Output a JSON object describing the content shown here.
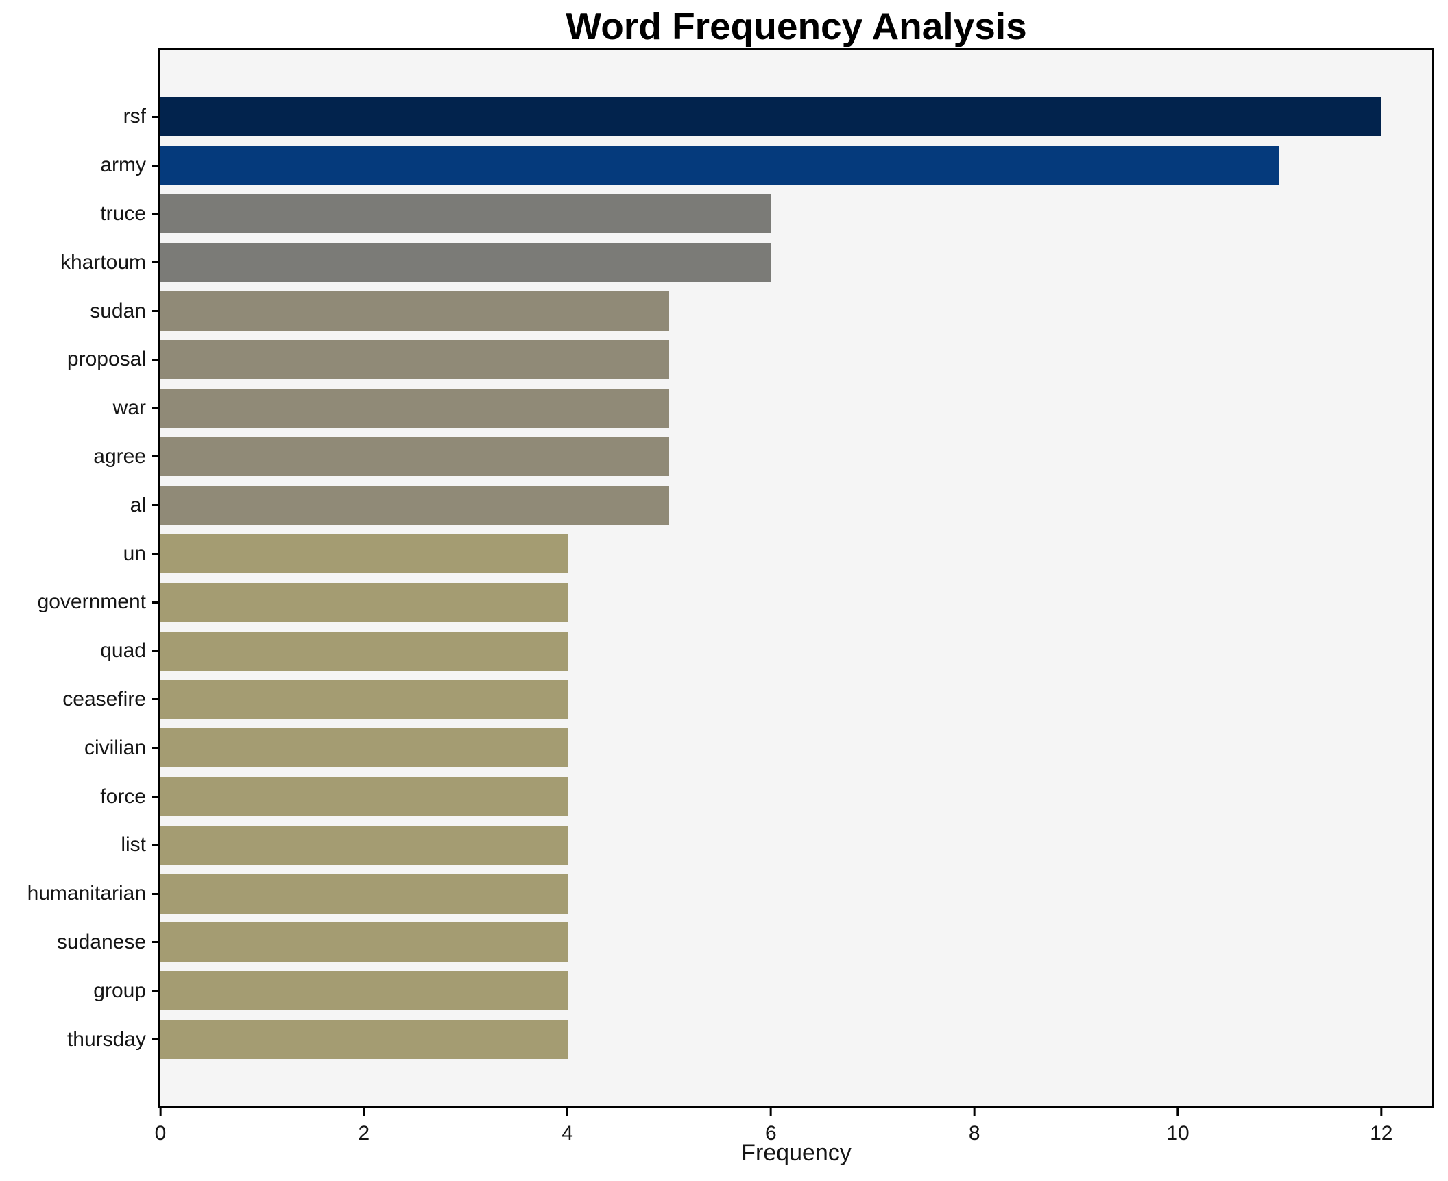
{
  "chart_data": {
    "type": "bar",
    "orientation": "horizontal",
    "title": "Word Frequency Analysis",
    "xlabel": "Frequency",
    "ylabel": "",
    "categories": [
      "rsf",
      "army",
      "truce",
      "khartoum",
      "sudan",
      "proposal",
      "war",
      "agree",
      "al",
      "un",
      "government",
      "quad",
      "ceasefire",
      "civilian",
      "force",
      "list",
      "humanitarian",
      "sudanese",
      "group",
      "thursday"
    ],
    "values": [
      12,
      11,
      6,
      6,
      5,
      5,
      5,
      5,
      5,
      4,
      4,
      4,
      4,
      4,
      4,
      4,
      4,
      4,
      4,
      4
    ],
    "bar_colors": [
      "#02234d",
      "#053a7c",
      "#7b7b77",
      "#7b7b77",
      "#908a77",
      "#908a77",
      "#908a77",
      "#908a77",
      "#908a77",
      "#a49c72",
      "#a49c72",
      "#a49c72",
      "#a49c72",
      "#a49c72",
      "#a49c72",
      "#a49c72",
      "#a49c72",
      "#a49c72",
      "#a49c72",
      "#a49c72"
    ],
    "xlim": [
      0,
      12.5
    ],
    "xticks": [
      0,
      2,
      4,
      6,
      8,
      10,
      12
    ],
    "grid": false,
    "legend": false,
    "plot_background": "#f5f5f5",
    "figure_background": "#ffffff",
    "spine_color": "#000000"
  }
}
